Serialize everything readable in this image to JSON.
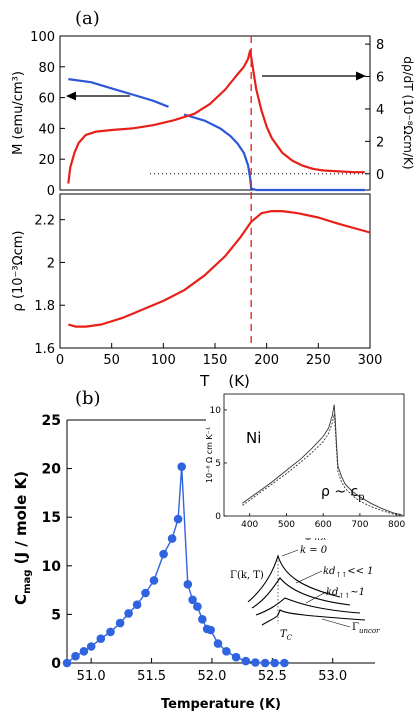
{
  "panel_a_label": "(a)",
  "panel_b_label": "(b)",
  "colors": {
    "red": "#e8201a",
    "blue": "#2d57d8",
    "dashed": "#e8201a",
    "marker": "#2f63df",
    "ink": "#000000",
    "inset_curve": "#333333"
  },
  "chart_data": [
    {
      "type": "line",
      "panel": "a-top",
      "ylabel_left": "M  (emu/cm³)",
      "ylabel_right": "dρ/dT  (10⁻⁸Ωcm/K)",
      "xlim": [
        0,
        300
      ],
      "ylim_left": [
        0,
        100
      ],
      "ylim_right": [
        -1,
        8.5
      ],
      "yticks_left": [
        "0",
        "20",
        "40",
        "60",
        "80",
        "100"
      ],
      "yticks_right": [
        "0",
        "2",
        "4",
        "6",
        "8"
      ],
      "vline_x": 185,
      "hline_right_y": 0,
      "series": [
        {
          "axis": "left",
          "color": "blue",
          "x": [
            8,
            30,
            50,
            70,
            90,
            105
          ],
          "y": [
            72,
            70,
            66,
            62,
            58,
            54
          ]
        },
        {
          "axis": "left",
          "color": "blue",
          "x": [
            120,
            140,
            155,
            165,
            172,
            178,
            182,
            184,
            185,
            190,
            220,
            250,
            280,
            295
          ],
          "y": [
            49,
            45,
            40,
            35,
            30,
            24,
            16,
            8,
            1,
            0,
            0,
            0,
            0,
            0
          ]
        },
        {
          "axis": "right",
          "color": "red",
          "x": [
            8,
            10,
            14,
            18,
            25,
            35,
            50,
            70,
            90,
            110,
            130,
            145,
            160,
            170,
            178,
            182,
            184,
            185,
            187,
            190,
            195,
            200,
            205,
            215,
            225,
            235,
            245,
            255,
            270,
            285,
            295
          ],
          "y": [
            -0.6,
            0.4,
            1.3,
            1.9,
            2.4,
            2.6,
            2.7,
            2.8,
            3.0,
            3.3,
            3.7,
            4.3,
            5.2,
            6.0,
            6.6,
            7.1,
            7.6,
            7.2,
            6.4,
            5.2,
            3.9,
            2.9,
            2.2,
            1.3,
            0.8,
            0.5,
            0.3,
            0.2,
            0.15,
            0.1,
            0.1
          ]
        }
      ]
    },
    {
      "type": "line",
      "panel": "a-bottom",
      "xlabel": "T    (K)",
      "ylabel": "ρ  (10⁻³Ωcm)",
      "xlim": [
        0,
        300
      ],
      "ylim": [
        1.6,
        2.32
      ],
      "xticks": [
        "0",
        "50",
        "100",
        "150",
        "200",
        "250",
        "300"
      ],
      "yticks": [
        "1.6",
        "1.8",
        "2",
        "2.2"
      ],
      "vline_x": 185,
      "series": [
        {
          "color": "red",
          "x": [
            8,
            15,
            25,
            40,
            60,
            80,
            100,
            120,
            140,
            160,
            175,
            185,
            195,
            205,
            215,
            230,
            250,
            270,
            300
          ],
          "y": [
            1.71,
            1.7,
            1.7,
            1.71,
            1.74,
            1.78,
            1.82,
            1.87,
            1.94,
            2.03,
            2.12,
            2.19,
            2.23,
            2.24,
            2.24,
            2.23,
            2.21,
            2.18,
            2.14
          ]
        }
      ]
    },
    {
      "type": "line",
      "panel": "b",
      "xlabel": "Temperature (K)",
      "ylabel": "C",
      "ylabel_sub": "mag",
      "ylabel_rest": " (J / mole K)",
      "xlim": [
        50.8,
        53.35
      ],
      "ylim": [
        0,
        25
      ],
      "xticks": [
        "51.0",
        "51.5",
        "52.0",
        "52.5",
        "53.0"
      ],
      "yticks": [
        "0",
        "5",
        "10",
        "15",
        "20",
        "25"
      ],
      "series": [
        {
          "color": "marker",
          "x": [
            50.8,
            50.87,
            50.94,
            51.0,
            51.08,
            51.16,
            51.24,
            51.31,
            51.38,
            51.45,
            51.52,
            51.6,
            51.67,
            51.72,
            51.75,
            51.8,
            51.84,
            51.88,
            51.92,
            51.96,
            51.99,
            52.05,
            52.12,
            52.2,
            52.28,
            52.36,
            52.44,
            52.52,
            52.6
          ],
          "y": [
            0.0,
            0.7,
            1.2,
            1.7,
            2.5,
            3.2,
            4.1,
            5.1,
            6.0,
            7.2,
            8.5,
            11.2,
            12.8,
            14.8,
            20.2,
            8.1,
            6.5,
            5.8,
            4.5,
            3.5,
            3.4,
            2.0,
            1.2,
            0.6,
            0.2,
            0.05,
            0.0,
            0.0,
            0.0
          ]
        }
      ]
    },
    {
      "type": "line",
      "panel": "b-inset-ni",
      "title": "Ni",
      "xlabel": "T (K)",
      "ylabel": "10⁻⁸ Ω cm K⁻¹",
      "annotation": "ρ  ~ c",
      "annotation_sub": "p",
      "xlim": [
        330,
        820
      ],
      "ylim": [
        0,
        11.5
      ],
      "xticks": [
        "400",
        "500",
        "600",
        "700",
        "800"
      ],
      "yticks": [
        "0",
        "5",
        "10"
      ],
      "series": [
        {
          "x": [
            380,
            420,
            460,
            500,
            540,
            570,
            600,
            615,
            625,
            630,
            633,
            636,
            640,
            650,
            660,
            680,
            700,
            730,
            760,
            790,
            815
          ],
          "y": [
            1.2,
            2.2,
            3.2,
            4.3,
            5.4,
            6.4,
            7.5,
            8.3,
            9.5,
            10.5,
            9.0,
            7.0,
            4.7,
            3.7,
            3.0,
            2.3,
            1.8,
            1.2,
            0.7,
            0.3,
            0.1
          ]
        },
        {
          "x": [
            380,
            420,
            460,
            500,
            540,
            570,
            600,
            615,
            625,
            630,
            633,
            636,
            640,
            650,
            660,
            680,
            700,
            730,
            760,
            790,
            815
          ],
          "y": [
            1.0,
            2.0,
            3.0,
            4.0,
            5.1,
            6.0,
            7.0,
            7.8,
            8.8,
            9.6,
            8.2,
            6.4,
            4.2,
            3.2,
            2.6,
            1.9,
            1.4,
            0.9,
            0.5,
            0.2,
            0.05
          ]
        }
      ]
    },
    {
      "type": "diagram",
      "panel": "b-inset-schematic",
      "ylabel": "Γ(k, T)",
      "xlabel": "T",
      "xlabel_sub": "C",
      "labels": [
        "k = 0",
        "kd",
        "<< 1",
        "kd",
        "~1",
        "Γ"
      ],
      "label_subs": [
        "",
        "↑↑",
        "",
        "↑↑",
        "",
        "uncor"
      ]
    }
  ]
}
